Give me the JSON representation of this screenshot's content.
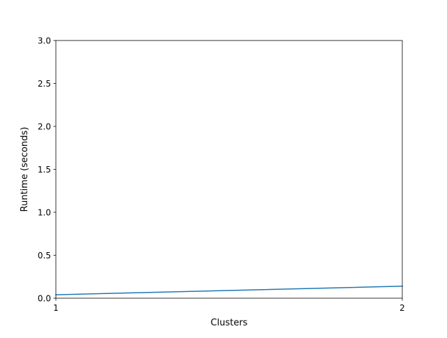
{
  "chart_data": {
    "type": "line",
    "title": "",
    "xlabel": "Clusters",
    "ylabel": "Runtime (seconds)",
    "x": [
      1,
      2
    ],
    "series": [
      {
        "values": [
          0.04,
          0.14
        ],
        "color": "#1f77b4"
      }
    ],
    "xlim": [
      1,
      2
    ],
    "ylim": [
      0,
      3
    ],
    "xticks": [
      1,
      2
    ],
    "xtick_labels": [
      "1",
      "2"
    ],
    "yticks": [
      0,
      0.5,
      1,
      1.5,
      2,
      2.5,
      3
    ],
    "ytick_labels": [
      "0.0",
      "0.5",
      "1.0",
      "1.5",
      "2.0",
      "2.5",
      "3.0"
    ],
    "grid": false,
    "legend": "none"
  }
}
